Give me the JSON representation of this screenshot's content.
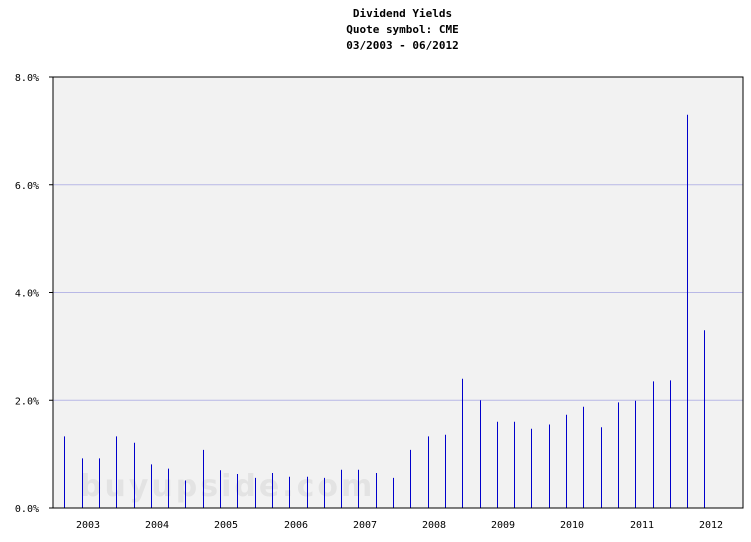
{
  "chart_data": {
    "type": "bar",
    "title": "Dividend Yields",
    "subtitle_lines": [
      "Quote symbol: CME",
      "03/2003 - 06/2012"
    ],
    "watermark": "buyupside.com",
    "ylabel": "",
    "xlabel": "",
    "ylim": [
      0,
      8
    ],
    "y_ticks": [
      {
        "value": 0,
        "label": "0.0%"
      },
      {
        "value": 2,
        "label": "2.0%"
      },
      {
        "value": 4,
        "label": "4.0%"
      },
      {
        "value": 6,
        "label": "6.0%"
      },
      {
        "value": 8,
        "label": "8.0%"
      }
    ],
    "x_ticks": [
      "2003",
      "2004",
      "2005",
      "2006",
      "2007",
      "2008",
      "2009",
      "2010",
      "2011",
      "2012"
    ],
    "xlim": [
      2003.0,
      2012.6
    ],
    "grid": true,
    "colors": {
      "bars": "#0000cc",
      "plot_bg": "#f2f2f2",
      "grid": "#b8b8e6",
      "axis": "#000000"
    },
    "series": [
      {
        "x": [
          2003.01,
          2003.27,
          2003.52,
          2003.77,
          2004.02,
          2004.27,
          2004.52,
          2004.77,
          2005.02,
          2005.27,
          2005.52,
          2005.77,
          2006.02,
          2006.27,
          2006.52,
          2006.77,
          2007.02,
          2007.27,
          2007.52,
          2007.77,
          2008.02,
          2008.27,
          2008.52,
          2008.77,
          2009.02,
          2009.27,
          2009.52,
          2009.77,
          2010.02,
          2010.27,
          2010.52,
          2010.77,
          2011.02,
          2011.27,
          2011.52,
          2011.77,
          2012.02,
          2012.27,
          2012.52
        ],
        "values": [
          1.33,
          0.92,
          0.92,
          1.33,
          1.21,
          0.81,
          0.73,
          0.51,
          1.08,
          0.7,
          0.63,
          0.56,
          0.65,
          0.58,
          0.58,
          0.56,
          0.71,
          0.71,
          0.65,
          0.56,
          1.08,
          1.33,
          1.36,
          2.4,
          2.0,
          1.6,
          1.6,
          1.47,
          1.55,
          1.73,
          1.88,
          1.5,
          1.96,
          1.99,
          2.35,
          2.37,
          7.3,
          3.3,
          0
        ]
      }
    ]
  }
}
